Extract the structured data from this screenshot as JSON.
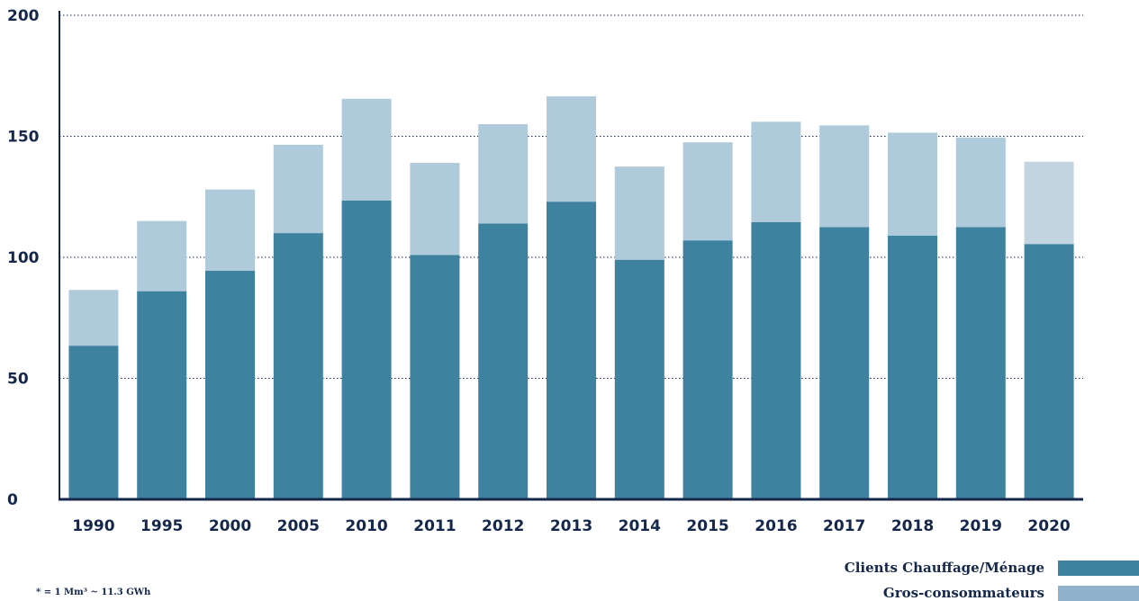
{
  "chart_data": {
    "type": "bar",
    "stacked": true,
    "categories": [
      "1990",
      "1995",
      "2000",
      "2005",
      "2010",
      "2011",
      "2012",
      "2013",
      "2014",
      "2015",
      "2016",
      "2017",
      "2018",
      "2019",
      "2020"
    ],
    "series": [
      {
        "name": "Clients Chauffage/Ménage",
        "values": [
          63.5,
          86,
          94.5,
          110,
          123.5,
          101,
          114,
          123,
          99,
          107,
          114.5,
          112.5,
          109,
          112.5,
          105.5
        ],
        "color": "#3e829f"
      },
      {
        "name": "Gros-consommateurs",
        "values": [
          23,
          29,
          33.5,
          36.5,
          42,
          38,
          41,
          43.5,
          38.5,
          40.5,
          41.5,
          42,
          42.5,
          37,
          34
        ],
        "color": "#afcadb",
        "last_color": "#c3d4e1"
      }
    ],
    "yticks": [
      0,
      50,
      100,
      150,
      200
    ],
    "ylim": [
      0,
      200
    ],
    "grid": true,
    "legend_position": "bottom-right"
  },
  "footnote": "* = 1 Mm³ ~ 11.3 GWh",
  "colors": {
    "axis": "#15284b",
    "grid": "#15284b"
  }
}
